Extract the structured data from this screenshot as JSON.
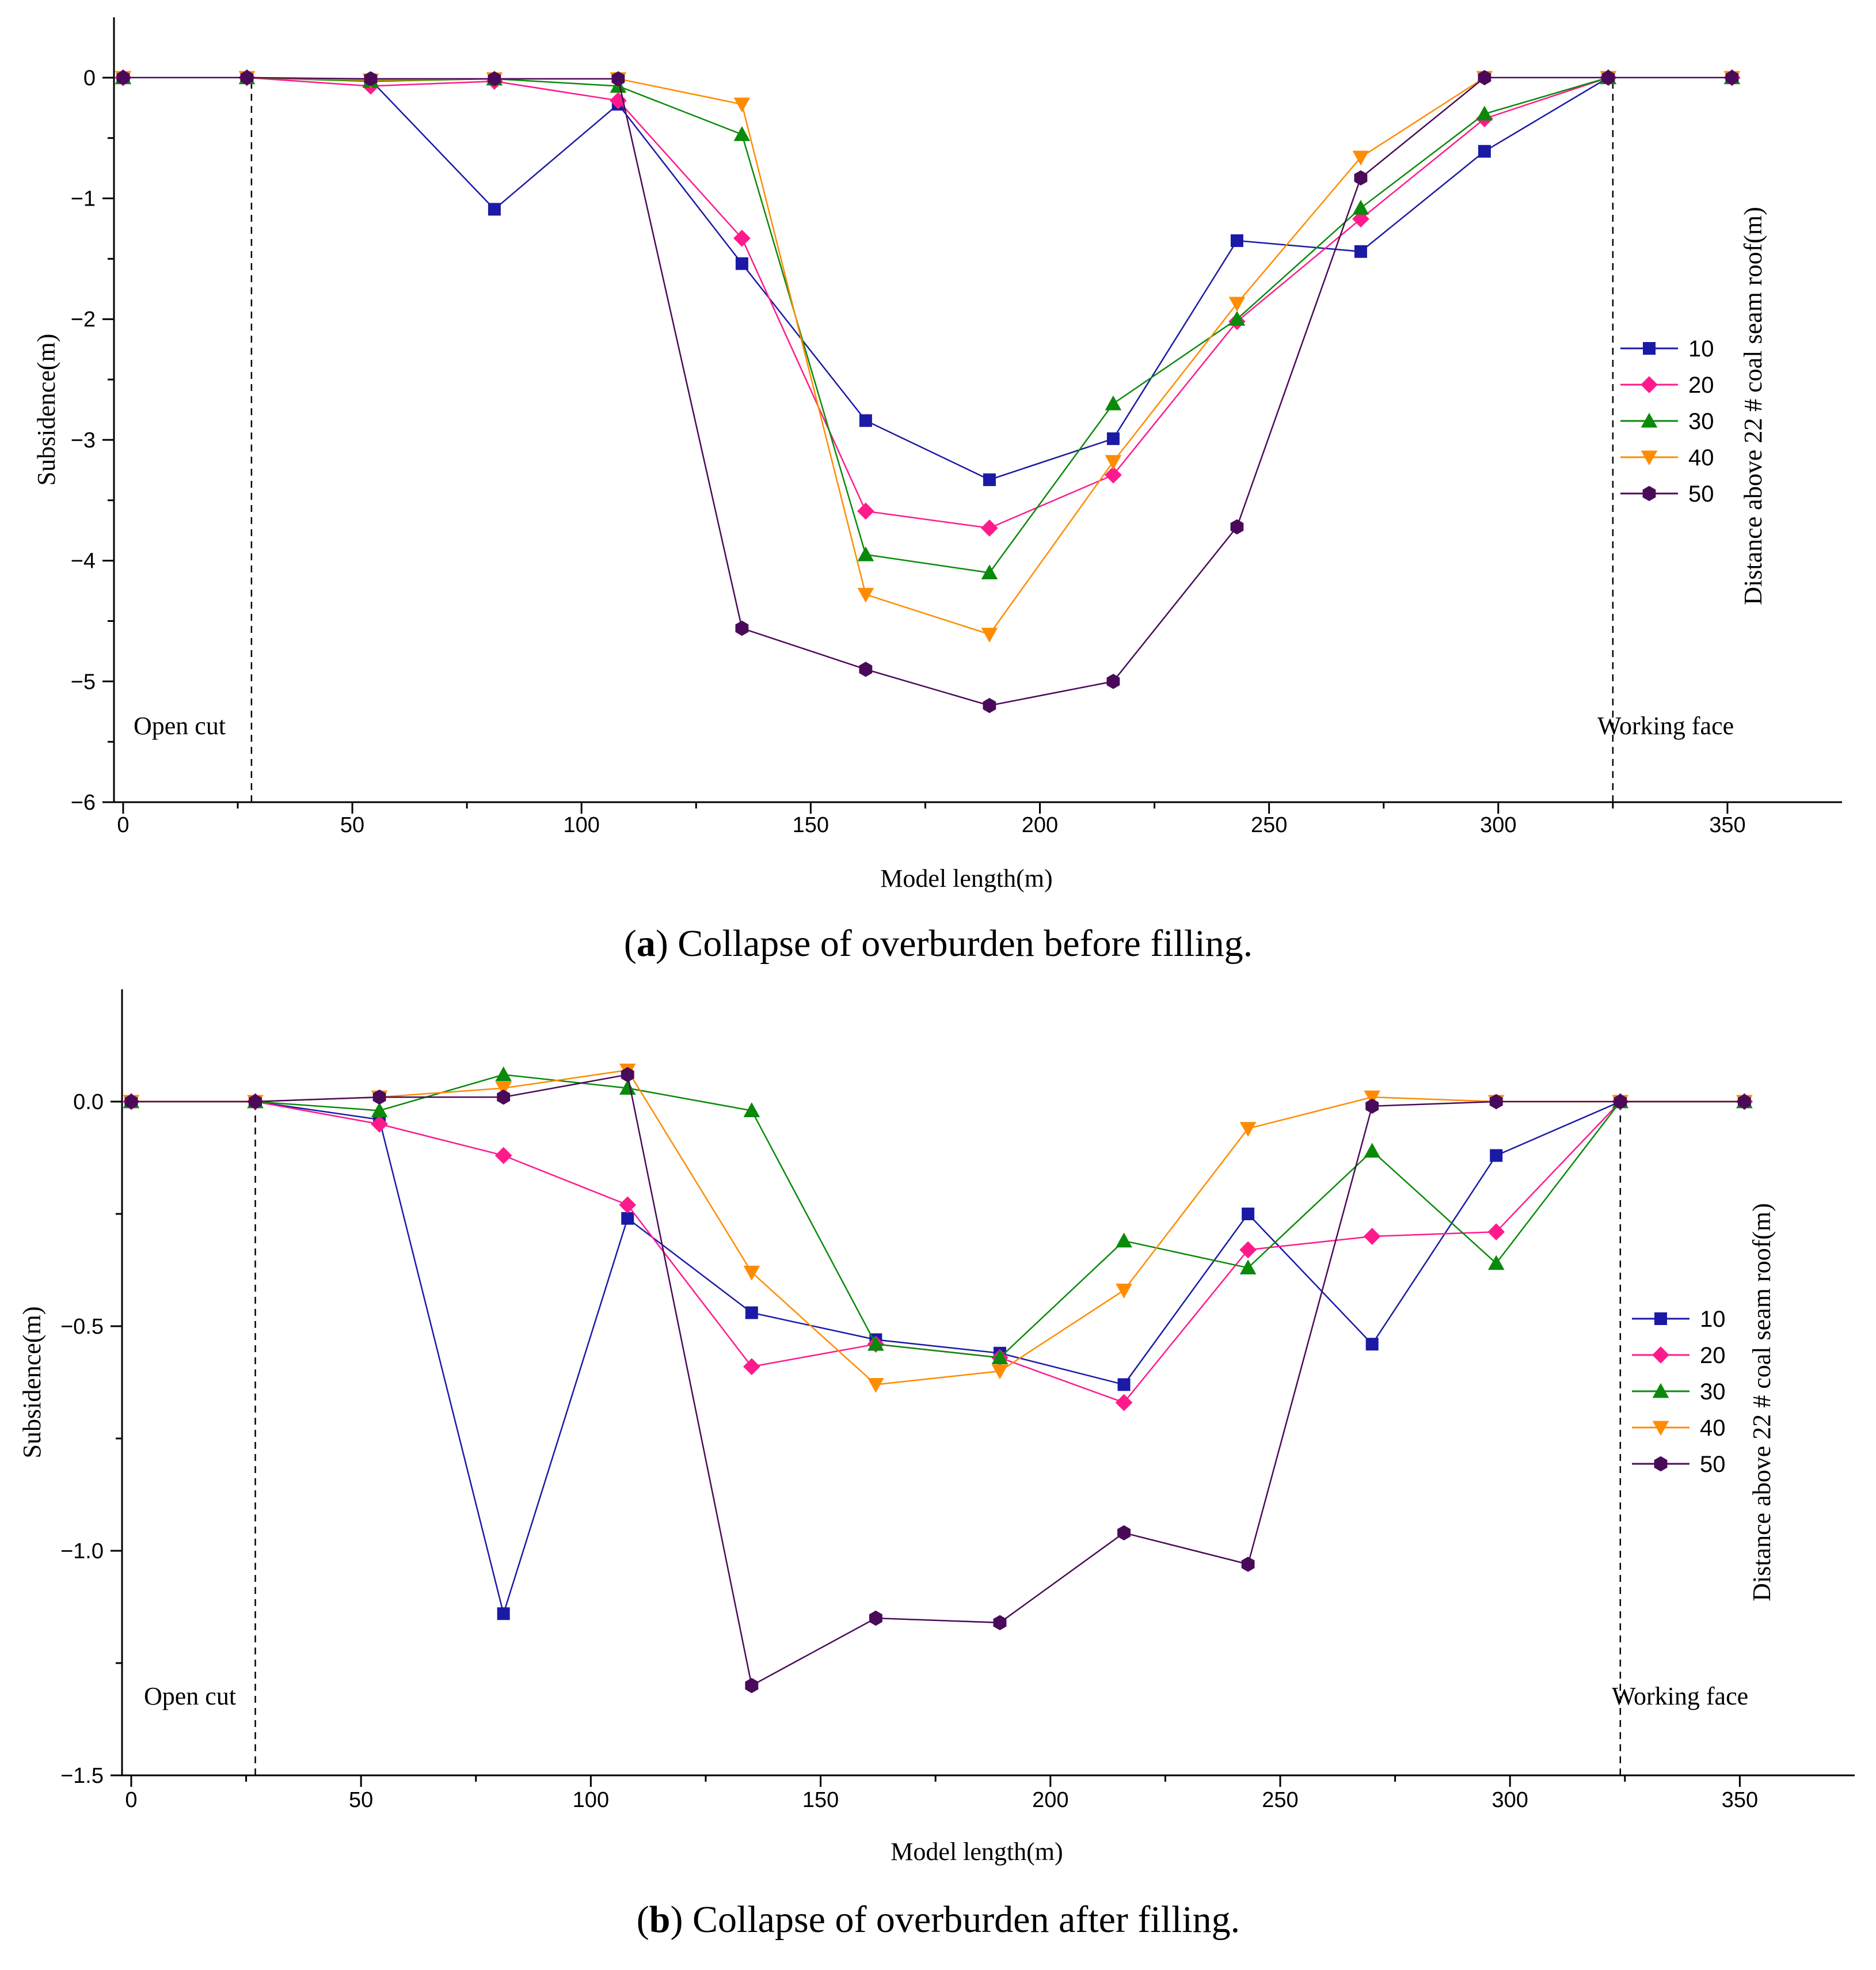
{
  "chart_data": [
    {
      "type": "line",
      "panel": "a",
      "caption_letter": "a",
      "caption_text": ") Collapse of overburden before filling.",
      "xlabel": "Model length(m)",
      "ylabel": "Subsidence(m)",
      "legend_title": "Distance above 22 # coal seam roof(m)",
      "xlim": [
        -2,
        375
      ],
      "ylim": [
        -6,
        0.5
      ],
      "xticks": [
        0,
        50,
        100,
        150,
        200,
        250,
        300,
        350
      ],
      "yticks": [
        0,
        -1,
        -2,
        -3,
        -4,
        -5,
        -6
      ],
      "ytick_labels": [
        "0",
        "−1",
        "−2",
        "−3",
        "−4",
        "−5",
        "−6"
      ],
      "annotations": [
        {
          "text": "Open cut",
          "x_line": 28
        },
        {
          "text": "Working face",
          "x_line": 325
        }
      ],
      "x": [
        0,
        27,
        54,
        81,
        108,
        135,
        162,
        189,
        216,
        243,
        270,
        297,
        324,
        351
      ],
      "series": [
        {
          "name": "10",
          "color": "#1a1aa6",
          "marker": "square",
          "values": [
            0,
            0,
            -0.02,
            -1.09,
            -0.22,
            -1.54,
            -2.84,
            -3.33,
            -2.99,
            -1.35,
            -1.44,
            -0.61,
            0,
            0
          ]
        },
        {
          "name": "20",
          "color": "#ff1a8c",
          "marker": "diamond",
          "values": [
            0,
            0,
            -0.07,
            -0.03,
            -0.19,
            -1.33,
            -3.59,
            -3.73,
            -3.29,
            -2.02,
            -1.17,
            -0.34,
            0,
            0
          ]
        },
        {
          "name": "30",
          "color": "#0a8a0a",
          "marker": "triangle-up",
          "values": [
            0,
            0,
            -0.03,
            -0.01,
            -0.07,
            -0.47,
            -3.95,
            -4.1,
            -2.7,
            -2.0,
            -1.08,
            -0.3,
            0,
            0
          ]
        },
        {
          "name": "40",
          "color": "#ff8c00",
          "marker": "triangle-down",
          "values": [
            0,
            0,
            -0.02,
            -0.01,
            -0.01,
            -0.22,
            -4.28,
            -4.61,
            -3.18,
            -1.87,
            -0.66,
            0,
            0,
            0
          ]
        },
        {
          "name": "50",
          "color": "#4a0a5a",
          "marker": "hexagon",
          "values": [
            0,
            0,
            -0.01,
            -0.01,
            -0.01,
            -4.56,
            -4.9,
            -5.2,
            -5.0,
            -3.72,
            -0.83,
            0,
            0,
            0
          ]
        }
      ]
    },
    {
      "type": "line",
      "panel": "b",
      "caption_letter": "b",
      "caption_text": ") Collapse of overburden after filling.",
      "xlabel": "Model length(m)",
      "ylabel": "Subsidence(m)",
      "legend_title": "Distance above 22 # coal seam roof(m)",
      "xlim": [
        -2,
        375
      ],
      "ylim": [
        -1.5,
        0.25
      ],
      "xticks": [
        0,
        50,
        100,
        150,
        200,
        250,
        300,
        350
      ],
      "yticks": [
        0,
        -0.5,
        -1.0,
        -1.5
      ],
      "ytick_labels": [
        "0.0",
        "−0.5",
        "−1.0",
        "−1.5"
      ],
      "annotations": [
        {
          "text": "Open cut",
          "x_line": 27
        },
        {
          "text": "Working face",
          "x_line": 324
        }
      ],
      "x": [
        0,
        27,
        54,
        81,
        108,
        135,
        162,
        189,
        216,
        243,
        270,
        297,
        324,
        351
      ],
      "series": [
        {
          "name": "10",
          "color": "#1a1aa6",
          "marker": "square",
          "values": [
            0,
            0,
            -0.04,
            -1.14,
            -0.26,
            -0.47,
            -0.53,
            -0.56,
            -0.63,
            -0.25,
            -0.54,
            -0.12,
            0,
            0
          ]
        },
        {
          "name": "20",
          "color": "#ff1a8c",
          "marker": "diamond",
          "values": [
            0,
            0,
            -0.05,
            -0.12,
            -0.23,
            -0.59,
            -0.54,
            -0.57,
            -0.67,
            -0.33,
            -0.3,
            -0.29,
            0,
            0
          ]
        },
        {
          "name": "30",
          "color": "#0a8a0a",
          "marker": "triangle-up",
          "values": [
            0,
            0,
            -0.02,
            0.06,
            0.03,
            -0.02,
            -0.54,
            -0.57,
            -0.31,
            -0.37,
            -0.11,
            -0.36,
            0,
            0
          ]
        },
        {
          "name": "40",
          "color": "#ff8c00",
          "marker": "triangle-down",
          "values": [
            0,
            0,
            0.01,
            0.03,
            0.07,
            -0.38,
            -0.63,
            -0.6,
            -0.42,
            -0.06,
            0.01,
            0,
            0,
            0
          ]
        },
        {
          "name": "50",
          "color": "#4a0a5a",
          "marker": "hexagon",
          "values": [
            0,
            0,
            0.01,
            0.01,
            0.06,
            -1.3,
            -1.15,
            -1.16,
            -0.96,
            -1.03,
            -0.01,
            0,
            0,
            0
          ]
        }
      ]
    }
  ]
}
